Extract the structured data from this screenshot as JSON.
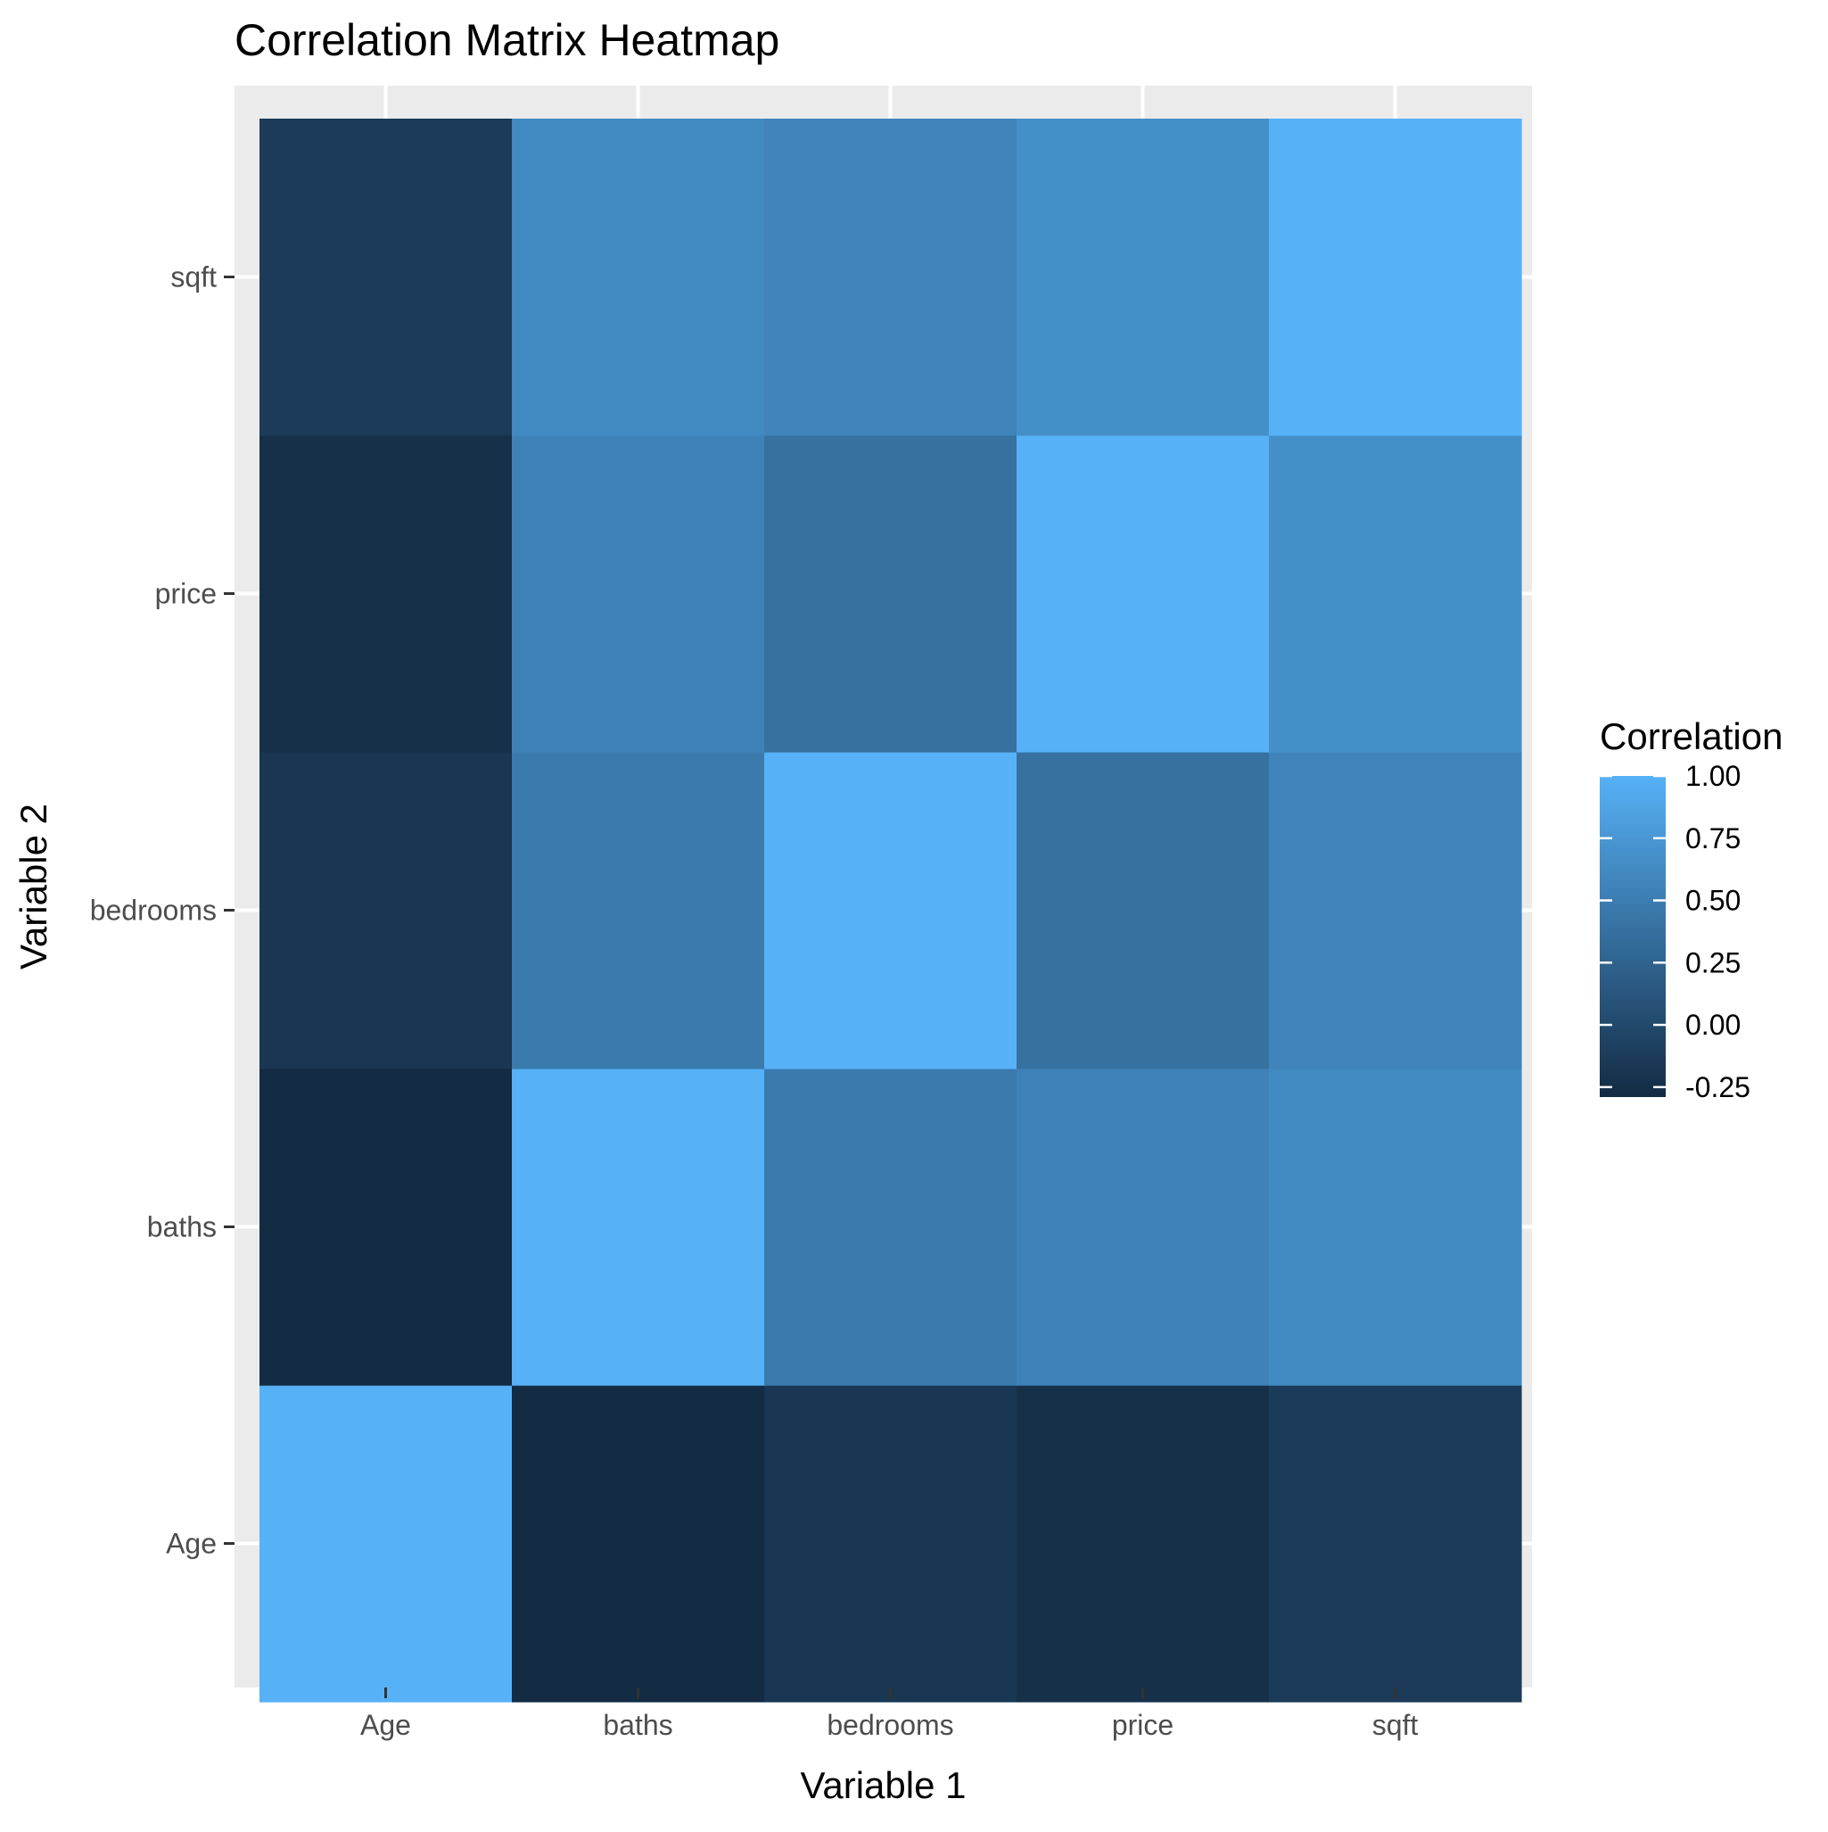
{
  "chart_data": {
    "type": "heatmap",
    "title": "Correlation Matrix Heatmap",
    "xlabel": "Variable 1",
    "ylabel": "Variable 2",
    "x_categories": [
      "Age",
      "baths",
      "bedrooms",
      "price",
      "sqft"
    ],
    "y_categories": [
      "Age",
      "baths",
      "bedrooms",
      "price",
      "sqft"
    ],
    "values": [
      [
        1.0,
        -0.29,
        -0.18,
        -0.24,
        -0.14
      ],
      [
        -0.29,
        1.0,
        0.47,
        0.55,
        0.62
      ],
      [
        -0.18,
        0.47,
        1.0,
        0.38,
        0.57
      ],
      [
        -0.24,
        0.55,
        0.38,
        1.0,
        0.67
      ],
      [
        -0.14,
        0.62,
        0.57,
        0.67,
        1.0
      ]
    ],
    "value_note": "values[i][j] = correlation between y_categories[i] and x_categories[j]",
    "legend": {
      "title": "Correlation",
      "ticks": [
        "1.00",
        "0.75",
        "0.50",
        "0.25",
        "0.00",
        "-0.25"
      ],
      "tick_values": [
        1.0,
        0.75,
        0.5,
        0.25,
        0.0,
        -0.25
      ],
      "range": [
        -0.29,
        1.0
      ],
      "placement": "right"
    },
    "color_low": "#132B43",
    "color_high": "#56B1F7",
    "panel_background": "#EBEBEB",
    "grid": true,
    "grid_color": "#FFFFFF"
  }
}
